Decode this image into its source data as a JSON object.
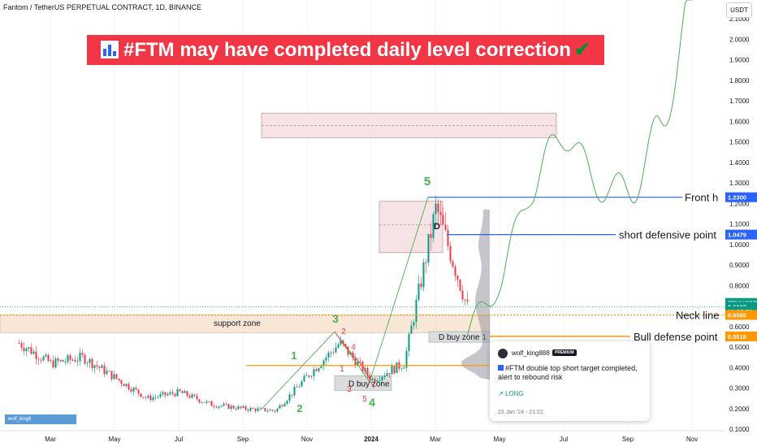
{
  "header": {
    "symbol_line": "Fantom / TetherUS PERPETUAL CONTRACT, 1D, BINANCE",
    "currency_button": "USDT"
  },
  "banner": {
    "text": "#FTM may have completed daily level correction",
    "icon": "bar-chart-emoji",
    "check_icon": "check-mark-emoji",
    "color": "#f23645"
  },
  "price_axis": {
    "ticks": [
      "2.1000",
      "2.0000",
      "1.9000",
      "1.8000",
      "1.7000",
      "1.6000",
      "1.5000",
      "1.4000",
      "1.3000",
      "1.2000",
      "1.1000",
      "1.0000",
      "0.9000",
      "0.8000",
      "0.7000",
      "0.6000",
      "0.5000",
      "0.4000",
      "0.3000",
      "0.2000",
      "0.1000"
    ],
    "labels": [
      {
        "text": "1.2300",
        "color": "#2962ff",
        "price": 1.23
      },
      {
        "text": "1.0479",
        "color": "#2962ff",
        "price": 1.0479
      },
      {
        "text": "FTMUSDT.P",
        "color": "#089981",
        "price": 0.715
      },
      {
        "text": "0.6967",
        "color": "#089981",
        "price": 0.6967
      },
      {
        "text": "02:27:56",
        "color": "#089981",
        "price": 0.675
      },
      {
        "text": "0.6565",
        "color": "#ff9800",
        "price": 0.6565
      },
      {
        "text": "0.5518",
        "color": "#ff9800",
        "price": 0.5518
      }
    ]
  },
  "time_axis": {
    "ticks": [
      "Mar",
      "May",
      "Jul",
      "Sep",
      "Nov",
      "2024",
      "Mar",
      "May",
      "Jul",
      "Sep",
      "Nov"
    ]
  },
  "annotations": {
    "support_zone": "support zone",
    "d_buy_zone": "D buy zone",
    "d_buy_zone_1": "D buy zone 1",
    "d_label": "D",
    "front_h": "Front h",
    "short_defensive": "short defensive point",
    "neck_line": "Neck line",
    "bull_defense": "Bull defense point",
    "green_waves": [
      "1",
      "2",
      "3",
      "4",
      "5"
    ],
    "red_waves": [
      "1",
      "2",
      "3",
      "4",
      "5"
    ]
  },
  "idea_card": {
    "username": "wolf_king888",
    "badge": "PREMIUM",
    "title": "#FTM double top short target completed, alert to rebound risk",
    "direction": "LONG",
    "timestamp": "23 Jan '24 - 21:22"
  },
  "author_tag": "wolf_king8",
  "chart_data": {
    "type": "candlestick",
    "symbol": "FTMUSDT.P",
    "timeframe": "1D",
    "y_range": [
      0.08,
      2.15
    ],
    "x_labels": [
      "Mar",
      "May",
      "Jul",
      "Sep",
      "Nov",
      "2024",
      "Mar",
      "May",
      "Jul",
      "Sep",
      "Nov"
    ],
    "close_path": [
      {
        "x": "Feb 2023",
        "y": 0.52
      },
      {
        "x": "Mar 2023",
        "y": 0.42
      },
      {
        "x": "Apr 2023",
        "y": 0.45
      },
      {
        "x": "May 2023",
        "y": 0.35
      },
      {
        "x": "Jun 2023",
        "y": 0.25
      },
      {
        "x": "Jul 2023",
        "y": 0.28
      },
      {
        "x": "Aug 2023",
        "y": 0.22
      },
      {
        "x": "Sep 2023",
        "y": 0.2
      },
      {
        "x": "Oct 2023",
        "y": 0.19
      },
      {
        "x": "Nov 2023",
        "y": 0.36
      },
      {
        "x": "Dec 2023",
        "y": 0.52
      },
      {
        "x": "Jan 2024",
        "y": 0.34
      },
      {
        "x": "Feb 2024",
        "y": 0.42
      },
      {
        "x": "Mar 2024",
        "y": 1.18
      },
      {
        "x": "Apr 2024",
        "y": 0.68
      }
    ],
    "levels": [
      {
        "name": "Front h",
        "price": 1.23
      },
      {
        "name": "short defensive point",
        "price": 1.0479
      },
      {
        "name": "Neck line",
        "price": 0.6565
      },
      {
        "name": "Bull defense point",
        "price": 0.5518
      },
      {
        "name": "support",
        "price": 0.41
      }
    ],
    "last_price": 0.6967,
    "zones": [
      {
        "name": "support zone",
        "price_from": 0.57,
        "price_to": 0.655
      },
      {
        "name": "target zone",
        "price_from": 1.52,
        "price_to": 1.64
      },
      {
        "name": "D zone",
        "price_from": 0.96,
        "price_to": 1.21
      }
    ],
    "projection": [
      {
        "x": "Apr 2024",
        "y": 0.56
      },
      {
        "x": "May 2024",
        "y": 0.82
      },
      {
        "x": "Jun 2024",
        "y": 1.28
      },
      {
        "x": "Jul 2024",
        "y": 1.55
      },
      {
        "x": "Aug 2024",
        "y": 1.3
      },
      {
        "x": "Sep 2024",
        "y": 1.25
      },
      {
        "x": "Oct 2024",
        "y": 1.55
      },
      {
        "x": "Nov 2024",
        "y": 2.2
      }
    ]
  }
}
